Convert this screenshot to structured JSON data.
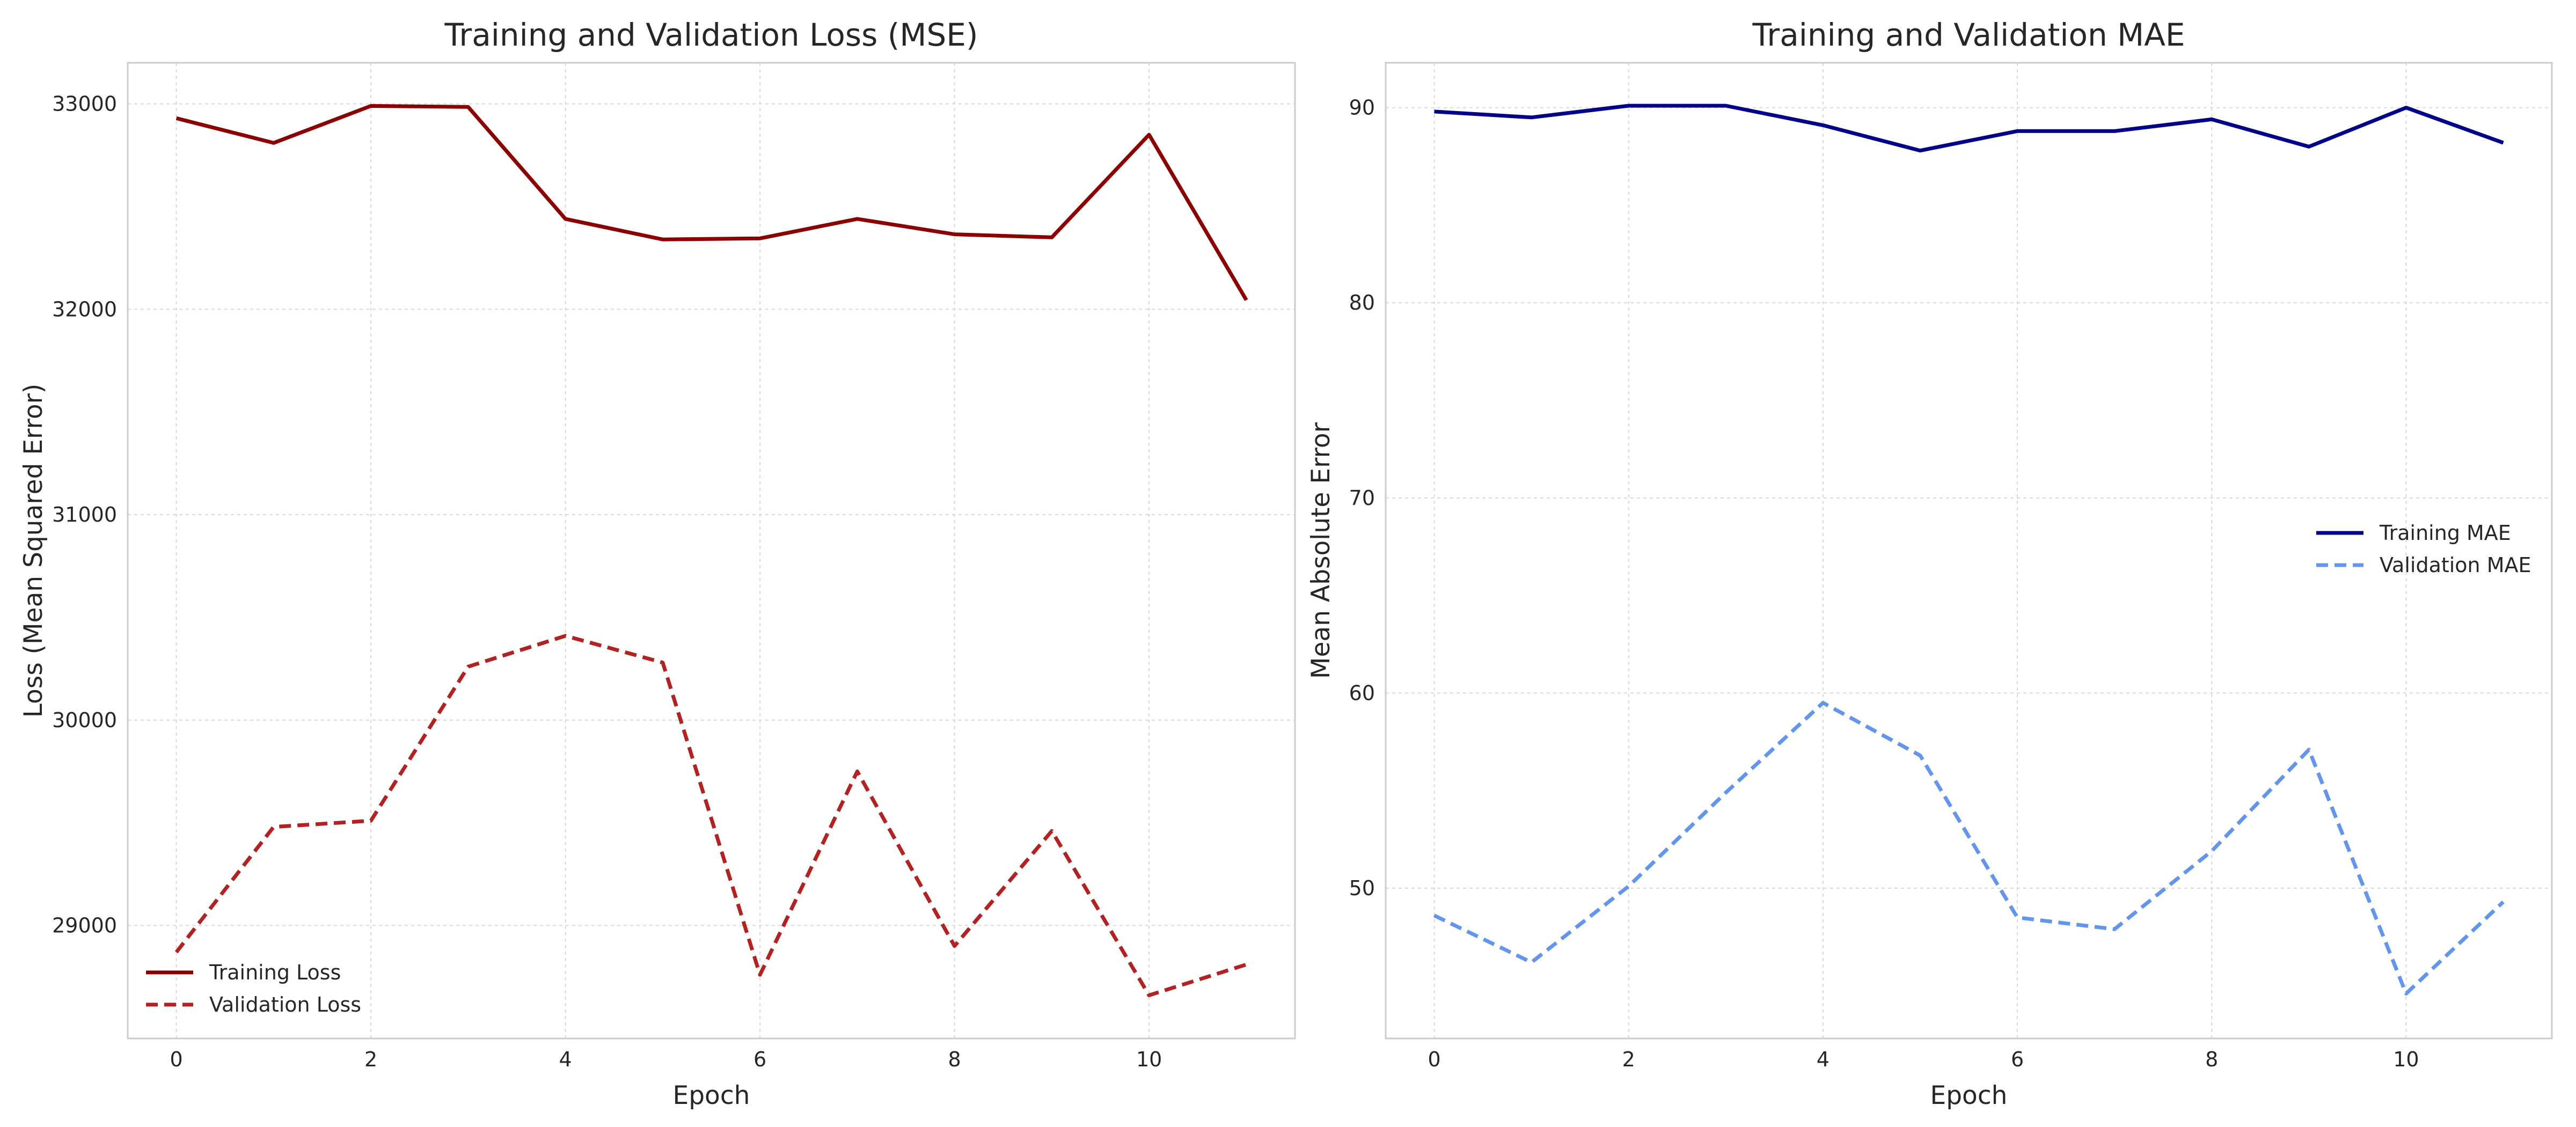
{
  "chart_data": [
    {
      "type": "line",
      "title": "Training and Validation Loss (MSE)",
      "xlabel": "Epoch",
      "ylabel": "Loss (Mean Squared Error)",
      "xlim": [
        -0.5,
        11.5
      ],
      "ylim": [
        28450,
        33200
      ],
      "xticks": [
        0,
        2,
        4,
        6,
        8,
        10
      ],
      "yticks": [
        29000,
        30000,
        31000,
        32000,
        33000
      ],
      "grid": true,
      "legend_position": "lower-left",
      "x": [
        0,
        1,
        2,
        3,
        4,
        5,
        6,
        7,
        8,
        9,
        10,
        11
      ],
      "series": [
        {
          "name": "Training Loss",
          "color": "#8b0000",
          "dash": "solid",
          "values": [
            32930,
            32810,
            32990,
            32985,
            32440,
            32340,
            32345,
            32440,
            32365,
            32350,
            32850,
            32045
          ]
        },
        {
          "name": "Validation Loss",
          "color": "#b22222",
          "dash": "dashed",
          "values": [
            28870,
            29480,
            29510,
            30260,
            30410,
            30280,
            28760,
            29750,
            28900,
            29460,
            28660,
            28810
          ]
        }
      ]
    },
    {
      "type": "line",
      "title": "Training and Validation MAE",
      "xlabel": "Epoch",
      "ylabel": "Mean Absolute Error",
      "xlim": [
        -0.5,
        11.5
      ],
      "ylim": [
        42.3,
        92.3
      ],
      "xticks": [
        0,
        2,
        4,
        6,
        8,
        10
      ],
      "yticks": [
        50,
        60,
        70,
        80,
        90
      ],
      "grid": true,
      "legend_position": "center-right",
      "x": [
        0,
        1,
        2,
        3,
        4,
        5,
        6,
        7,
        8,
        9,
        10,
        11
      ],
      "series": [
        {
          "name": "Training MAE",
          "color": "#00008b",
          "dash": "solid",
          "values": [
            89.8,
            89.5,
            90.1,
            90.1,
            89.1,
            87.8,
            88.8,
            88.8,
            89.4,
            88.0,
            90.0,
            88.2
          ]
        },
        {
          "name": "Validation MAE",
          "color": "#6495ed",
          "dash": "dashed",
          "values": [
            48.6,
            46.2,
            50.1,
            54.9,
            59.5,
            56.8,
            48.5,
            47.9,
            51.9,
            57.1,
            44.6,
            49.3
          ]
        }
      ]
    }
  ]
}
